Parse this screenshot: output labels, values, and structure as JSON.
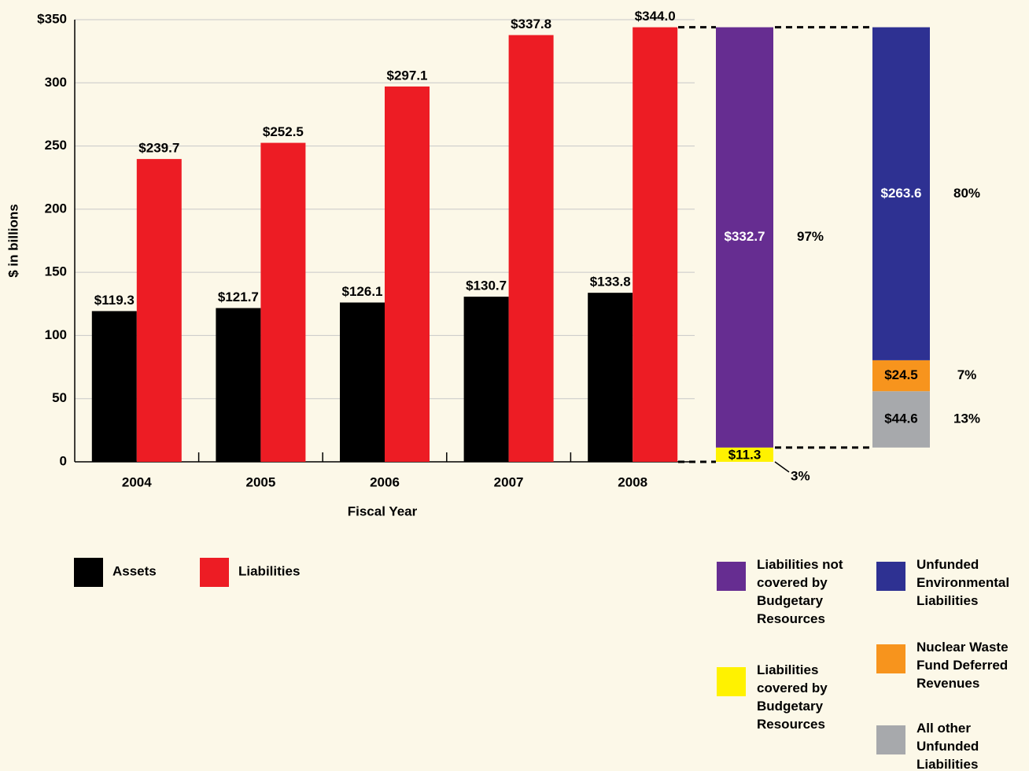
{
  "chart_data": [
    {
      "type": "grouped_bar",
      "y_label": "$ in billions",
      "x_label": "Fiscal Year",
      "categories": [
        "2004",
        "2005",
        "2006",
        "2007",
        "2008"
      ],
      "series": [
        {
          "name": "Assets",
          "color": "#000000",
          "values": [
            119.3,
            121.7,
            126.1,
            130.7,
            133.8
          ],
          "value_labels": [
            "$119.3",
            "$121.7",
            "$126.1",
            "$130.7",
            "$133.8"
          ]
        },
        {
          "name": "Liabilities",
          "color": "#ed1c24",
          "values": [
            239.7,
            252.5,
            297.1,
            337.8,
            344.0
          ],
          "value_labels": [
            "$239.7",
            "$252.5",
            "$297.1",
            "$337.8",
            "$344.0"
          ]
        }
      ],
      "ylim": [
        0,
        350
      ],
      "yticks": [
        0,
        50,
        100,
        150,
        200,
        250,
        300,
        {
          "value": 350,
          "label": "$350"
        }
      ],
      "grid": true
    },
    {
      "type": "stacked_bar",
      "series": [
        {
          "name": "Liabilities covered by Budgetary Resources",
          "color": "#fff200",
          "values": [
            11.3
          ],
          "value_labels": [
            "$11.3"
          ],
          "percent": 3,
          "percent_label": "3%"
        },
        {
          "name": "Liabilities not covered by Budgetary Resources",
          "color": "#662d91",
          "values": [
            332.7
          ],
          "value_labels": [
            "$332.7"
          ],
          "percent": 97,
          "percent_label": "97%"
        }
      ]
    },
    {
      "type": "stacked_bar",
      "series": [
        {
          "name": "All other Unfunded Liabilities",
          "color": "#a7a9ac",
          "values": [
            44.6
          ],
          "value_labels": [
            "$44.6"
          ],
          "percent": 13,
          "percent_label": "13%"
        },
        {
          "name": "Nuclear Waste Fund Deferred Revenues",
          "color": "#f7941d",
          "values": [
            24.5
          ],
          "value_labels": [
            "$24.5"
          ],
          "percent": 7,
          "percent_label": "7%"
        },
        {
          "name": "Unfunded Environmental Liabilities",
          "color": "#2e3192",
          "values": [
            263.6
          ],
          "value_labels": [
            "$263.6"
          ],
          "percent": 80,
          "percent_label": "80%"
        }
      ]
    }
  ]
}
